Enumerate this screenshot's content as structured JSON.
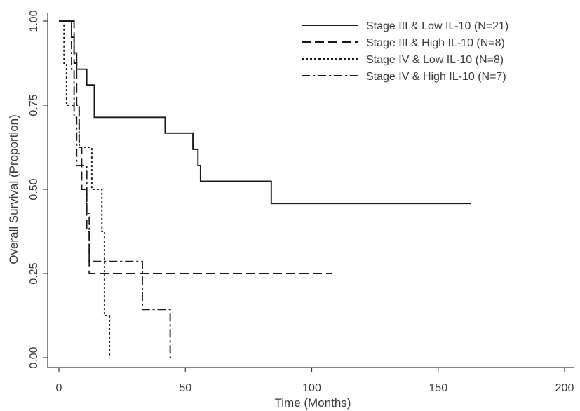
{
  "chart_data": {
    "type": "line",
    "subtype": "kaplan-meier step",
    "title": "",
    "xlabel": "Time (Months)",
    "ylabel": "Overall Survival (Proportion)",
    "xlim": [
      0,
      200
    ],
    "ylim": [
      0,
      1
    ],
    "x_ticks": [
      0,
      50,
      100,
      150,
      200
    ],
    "y_ticks": [
      0,
      0.25,
      0.5,
      0.75,
      1.0
    ],
    "x_tick_labels": [
      "0",
      "50",
      "100",
      "150",
      "200"
    ],
    "y_tick_labels": [
      "0.00",
      "0.25",
      "0.50",
      "0.75",
      "1.00"
    ],
    "grid": false,
    "legend_position": "top-right",
    "series": [
      {
        "name": "Stage III & Low IL-10 (N=21)",
        "dash": "solid",
        "color": "#1a1a1a",
        "x": [
          0,
          5,
          6,
          7,
          8,
          10,
          11,
          13,
          14,
          42,
          53,
          55,
          56,
          84,
          163
        ],
        "y": [
          1.0,
          0.952,
          0.905,
          0.857,
          0.857,
          0.857,
          0.81,
          0.81,
          0.714,
          0.667,
          0.619,
          0.571,
          0.524,
          0.458,
          0.458
        ]
      },
      {
        "name": "Stage III & High IL-10 (N=8)",
        "dash": "dashed",
        "color": "#1a1a1a",
        "x": [
          0,
          6,
          7,
          8,
          9,
          11,
          12,
          14,
          108
        ],
        "y": [
          1.0,
          0.875,
          0.75,
          0.625,
          0.5,
          0.375,
          0.25,
          0.25,
          0.25
        ]
      },
      {
        "name": "Stage IV & Low IL-10 (N=8)",
        "dash": "dotted",
        "color": "#1a1a1a",
        "x": [
          0,
          2,
          3,
          5,
          8,
          10,
          13,
          15,
          17,
          18,
          20
        ],
        "y": [
          1.0,
          0.875,
          0.75,
          0.75,
          0.625,
          0.625,
          0.5,
          0.5,
          0.375,
          0.125,
          0.0
        ]
      },
      {
        "name": "Stage IV & High IL-10 (N=7)",
        "dash": "dashdot",
        "color": "#1a1a1a",
        "x": [
          0,
          5,
          6,
          7,
          8,
          9,
          11,
          12,
          13,
          33,
          44,
          45
        ],
        "y": [
          1.0,
          0.857,
          0.714,
          0.571,
          0.571,
          0.571,
          0.429,
          0.286,
          0.286,
          0.143,
          0.0,
          0.0
        ]
      }
    ]
  }
}
